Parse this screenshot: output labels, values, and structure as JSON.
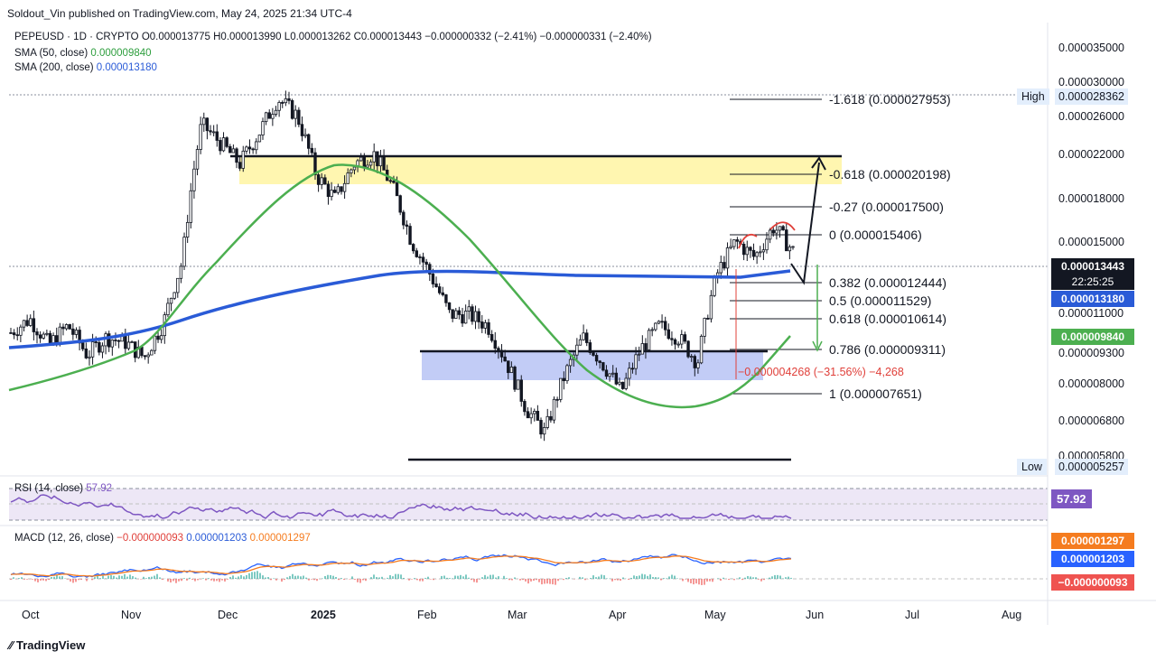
{
  "publisher": "Soldout_Vin published on TradingView.com, May 24, 2025 21:34 UTC-4",
  "header": {
    "symbol": "PEPEUSD · 1D · CRYPTO",
    "open": "O0.000013775",
    "high": "H0.000013990",
    "low": "L0.000013262",
    "close": "C0.000013443",
    "change": "−0.000000332 (−2.41%)",
    "change2": "−0.000000331 (−2.40%)",
    "sma50_label": "SMA (50, close)",
    "sma50_value": "0.000009840",
    "sma200_label": "SMA (200, close)",
    "sma200_value": "0.000013180"
  },
  "price_axis": [
    "0.000035000",
    "0.000030000",
    "0.000026000",
    "0.000022000",
    "0.000018000",
    "0.000015000",
    "0.000011000",
    "0.000009300",
    "0.000008000",
    "0.000006800",
    "0.000005800"
  ],
  "tags": {
    "high_label": "High",
    "high_value": "0.000028362",
    "last_price": "0.000013443",
    "countdown": "22:25:25",
    "sma200": "0.000013180",
    "sma50": "0.000009840",
    "low_label": "Low",
    "low_value": "0.000005257",
    "rsi": "57.92",
    "macd_signal": "0.000001297",
    "macd_line": "0.000001203",
    "macd_hist": "−0.000000093"
  },
  "fib_levels": [
    {
      "ratio": "-1.618",
      "price": "0.000027953"
    },
    {
      "ratio": "-0.618",
      "price": "0.000020198"
    },
    {
      "ratio": "-0.27",
      "price": "0.000017500"
    },
    {
      "ratio": "0",
      "price": "0.000015406"
    },
    {
      "ratio": "0.382",
      "price": "0.000012444"
    },
    {
      "ratio": "0.5",
      "price": "0.000011529"
    },
    {
      "ratio": "0.618",
      "price": "0.000010614"
    },
    {
      "ratio": "0.786",
      "price": "0.000009311"
    },
    {
      "ratio": "1",
      "price": "0.000007651"
    }
  ],
  "measure_label": "−0.000004268 (−31.56%) −4,268",
  "months": [
    "Oct",
    "Nov",
    "Dec",
    "2025",
    "Feb",
    "Mar",
    "Apr",
    "May",
    "Jun",
    "Jul",
    "Aug"
  ],
  "rsi": {
    "label": "RSI (14, close)",
    "value": "57.92"
  },
  "macd": {
    "label": "MACD (12, 26, close)",
    "hist": "−0.000000093",
    "macd": "0.000001203",
    "signal": "0.000001297"
  },
  "footer": "TradingView",
  "colors": {
    "sma50": "#4caf50",
    "sma200": "#2a5bd7",
    "up": "#131722",
    "zone_yellow": "#fff6b0",
    "zone_blue": "#b7c3f5",
    "rsi": "#7e57c2",
    "macd": "#2962ff",
    "signal": "#f57c1f"
  },
  "chart_data": {
    "type": "candlestick",
    "title": "PEPEUSD · 1D · CRYPTO",
    "ylim": [
      4.8e-06,
      3.6e-05
    ],
    "x_months": [
      "Oct",
      "Nov",
      "Dec",
      "2025",
      "Feb",
      "Mar",
      "Apr",
      "May",
      "Jun",
      "Jul",
      "Aug"
    ],
    "close_series": [
      9.2e-06,
      9.8e-06,
      8.7e-06,
      9.5e-06,
      8.3e-06,
      9e-06,
      8.8e-06,
      8.2e-06,
      9.6e-06,
      1.28e-05,
      2.4e-05,
      2.2e-05,
      2e-05,
      2.3e-05,
      2.7e-05,
      2.5e-05,
      1.9e-05,
      1.7e-05,
      2e-05,
      2.1e-05,
      1.8e-05,
      1.4e-05,
      1.2e-05,
      1e-05,
      1e-05,
      9.5e-06,
      8e-06,
      6.5e-06,
      5.8e-06,
      7.5e-06,
      9e-06,
      8e-06,
      7e-06,
      8.5e-06,
      9.5e-06,
      9e-06,
      8e-06,
      1.2e-05,
      1.4e-05,
      1.3e-05,
      1.5e-05,
      1.34e-05
    ],
    "sma50": 9.84e-06,
    "sma200": 1.318e-05,
    "last": 1.3443e-05,
    "high": 2.8362e-05,
    "low": 5.257e-06,
    "fibonacci": [
      [
        -1.618,
        2.7953e-05
      ],
      [
        -0.618,
        2.0198e-05
      ],
      [
        -0.27,
        1.75e-05
      ],
      [
        0,
        1.5406e-05
      ],
      [
        0.382,
        1.2444e-05
      ],
      [
        0.5,
        1.1529e-05
      ],
      [
        0.618,
        1.0614e-05
      ],
      [
        0.786,
        9.311e-06
      ],
      [
        1,
        7.651e-06
      ]
    ]
  }
}
